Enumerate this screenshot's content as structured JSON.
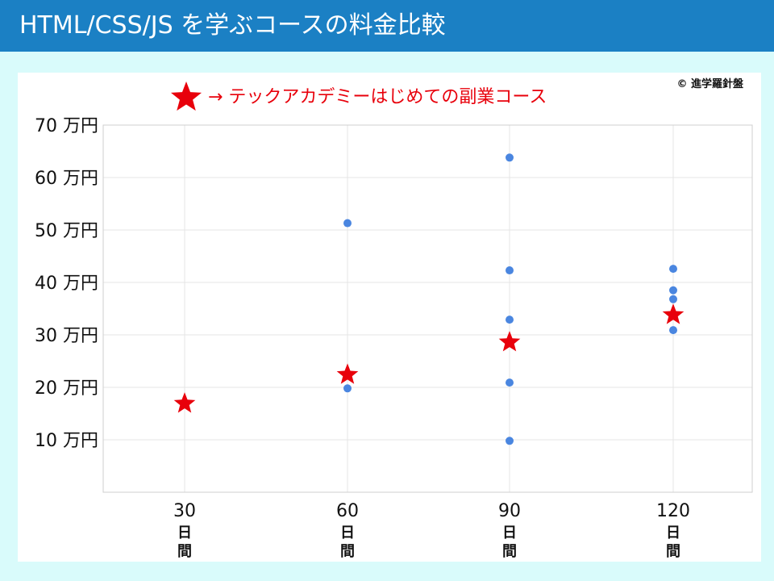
{
  "header": {
    "title": "HTML/CSS/JS を学ぶコースの料金比較"
  },
  "copyright": "© 進学羅針盤",
  "colors": {
    "header_bg": "#1b80c4",
    "page_bg": "#d9fbfb",
    "dot": "#4a86e0",
    "star": "#e8000b",
    "grid": "#e6e6e6"
  },
  "chart_data": {
    "type": "scatter",
    "title": "",
    "xlabel": "",
    "ylabel": "",
    "x_categories": [
      30,
      60,
      90,
      120
    ],
    "x_tick_labels": [
      "30",
      "60",
      "90",
      "120"
    ],
    "x_unit_chars": [
      "日",
      "間"
    ],
    "ylim": [
      0,
      70
    ],
    "y_ticks": [
      10,
      20,
      30,
      40,
      50,
      60,
      70
    ],
    "y_tick_labels": [
      "10 万円",
      "20 万円",
      "30 万円",
      "40 万円",
      "50 万円",
      "60 万円",
      "70 万円"
    ],
    "grid": true,
    "legend": {
      "position": "top-center",
      "text": "→ テックアカデミーはじめての副業コース",
      "marker": "star"
    },
    "series": [
      {
        "marker": "dot",
        "points": [
          {
            "x": 60,
            "y": 51.3
          },
          {
            "x": 60,
            "y": 19.8
          },
          {
            "x": 90,
            "y": 63.8
          },
          {
            "x": 90,
            "y": 42.3
          },
          {
            "x": 90,
            "y": 32.9
          },
          {
            "x": 90,
            "y": 20.9
          },
          {
            "x": 90,
            "y": 9.8
          },
          {
            "x": 120,
            "y": 42.6
          },
          {
            "x": 120,
            "y": 38.5
          },
          {
            "x": 120,
            "y": 36.8
          },
          {
            "x": 120,
            "y": 30.9
          }
        ]
      },
      {
        "name": "テックアカデミーはじめての副業コース",
        "marker": "star",
        "points": [
          {
            "x": 30,
            "y": 16.9
          },
          {
            "x": 60,
            "y": 22.4
          },
          {
            "x": 90,
            "y": 28.6
          },
          {
            "x": 120,
            "y": 33.8
          }
        ]
      }
    ]
  }
}
